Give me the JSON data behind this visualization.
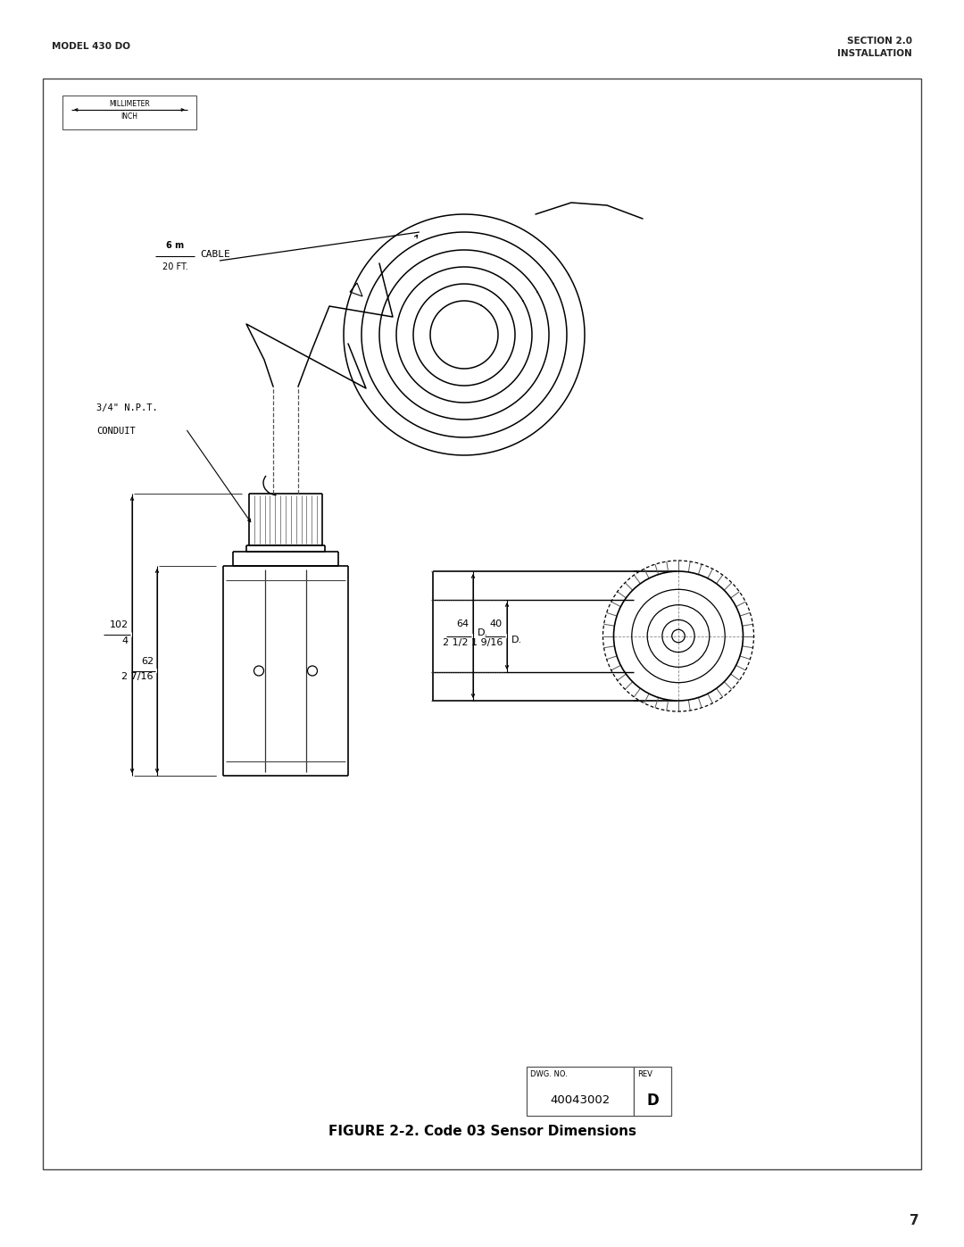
{
  "page_width": 10.8,
  "page_height": 13.97,
  "bg_color": "#ffffff",
  "header_left": "MODEL 430 DO",
  "header_right_line1": "SECTION 2.0",
  "header_right_line2": "INSTALLATION",
  "figure_caption": "FIGURE 2-2. Code 03 Sensor Dimensions",
  "dwg_no_label": "DWG. NO.",
  "dwg_no_value": "40043002",
  "rev_label": "REV",
  "rev_value": "D",
  "page_number": "7",
  "scale_label_top": "MILLIMETER",
  "scale_label_bottom": "INCH",
  "cable_label": "CABLE",
  "cable_length_mm": "6 m",
  "cable_length_ft": "20 FT.",
  "conduit_label_line1": "3/4\" N.P.T.",
  "conduit_label_line2": "CONDUIT",
  "dim_102_top": "102",
  "dim_102_bot": "4",
  "dim_62_top": "62",
  "dim_62_bot": "2 7/16",
  "dim_64_top": "64",
  "dim_64_bot": "2 1/2",
  "dim_64_label": "D.",
  "dim_40_top": "40",
  "dim_40_bot": "1 9/16",
  "dim_40_label": "D."
}
